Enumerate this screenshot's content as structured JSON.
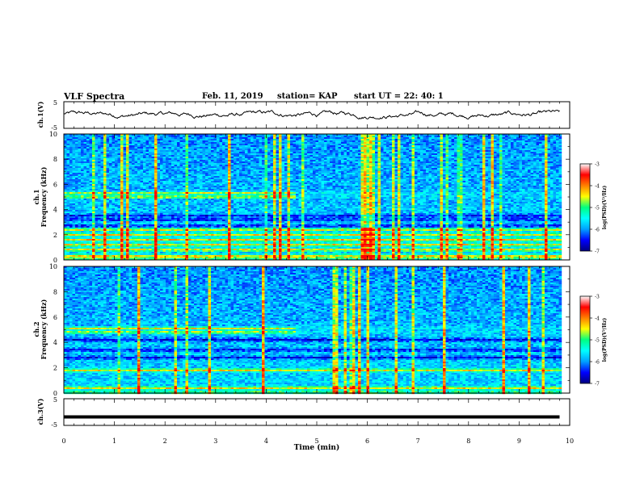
{
  "header": {
    "title": "VLF Spectra",
    "date": "Feb. 11, 2019",
    "station": "station= KAP",
    "start_ut": "start UT =  22: 40: 1"
  },
  "chart_data": [
    {
      "type": "line",
      "panel": "ch1-waveform",
      "ylabel": "ch.1(V)",
      "ylim": [
        -5,
        5
      ],
      "yticks": [
        "-5",
        "5"
      ],
      "xlim": [
        0,
        10
      ],
      "data_extent_min": 9.8,
      "series_color": "#000000",
      "values_range": [
        -1.5,
        1.8
      ]
    },
    {
      "type": "heatmap",
      "panel": "ch1-spectrogram",
      "ylabel_line1": "ch.1",
      "ylabel_line2": "Frequency (kHz)",
      "ylim": [
        0,
        10
      ],
      "yticks": [
        "0",
        "2",
        "4",
        "6",
        "8",
        "10"
      ],
      "xlim": [
        0,
        10
      ],
      "data_extent_min": 9.8,
      "transition_min": 4.55,
      "strong_bands_khz": [
        0.3,
        0.8,
        1.2,
        1.6,
        2.0,
        2.4,
        5.0,
        5.3
      ],
      "dark_bands_khz": [
        2.7,
        3.2,
        3.5
      ],
      "colorbar": {
        "label": "log(PSD)(V²/Hz)",
        "range": [
          -7,
          -3
        ],
        "ticks": [
          "-3",
          "-4",
          "-5",
          "-6",
          "-7"
        ],
        "colors": [
          "#00007f",
          "#0000ff",
          "#00a0ff",
          "#00ffff",
          "#00ff80",
          "#ffff00",
          "#ff8000",
          "#ff0000",
          "#ffffff"
        ]
      }
    },
    {
      "type": "heatmap",
      "panel": "ch2-spectrogram",
      "ylabel_line1": "ch.2",
      "ylabel_line2": "Frequency (kHz)",
      "ylim": [
        0,
        10
      ],
      "yticks": [
        "0",
        "2",
        "4",
        "6",
        "8",
        "10"
      ],
      "xlim": [
        0,
        10
      ],
      "data_extent_min": 9.8,
      "transition_min": 4.55,
      "strong_bands_khz": [
        0.4,
        1.8,
        4.8,
        5.1
      ],
      "dark_bands_khz": [
        2.8,
        3.4,
        4.2
      ],
      "colorbar": {
        "label": "log(PSD)(V²/Hz)",
        "range": [
          -7,
          -3
        ],
        "ticks": [
          "-3",
          "-4",
          "-5",
          "-6",
          "-7"
        ],
        "colors": [
          "#00007f",
          "#0000ff",
          "#00a0ff",
          "#00ffff",
          "#00ff80",
          "#ffff00",
          "#ff8000",
          "#ff0000",
          "#ffffff"
        ]
      }
    },
    {
      "type": "line",
      "panel": "ch3-waveform",
      "ylabel": "ch.3(V)",
      "ylim": [
        -5,
        5
      ],
      "yticks": [
        "-5",
        "5"
      ],
      "xlim": [
        0,
        10
      ],
      "data_extent_min": 9.8,
      "constant_value": -1.8,
      "series_color": "#000000"
    }
  ],
  "xaxis": {
    "label": "Time (min)",
    "ticks": [
      "0",
      "1",
      "2",
      "3",
      "4",
      "5",
      "6",
      "7",
      "8",
      "9",
      "10"
    ]
  }
}
